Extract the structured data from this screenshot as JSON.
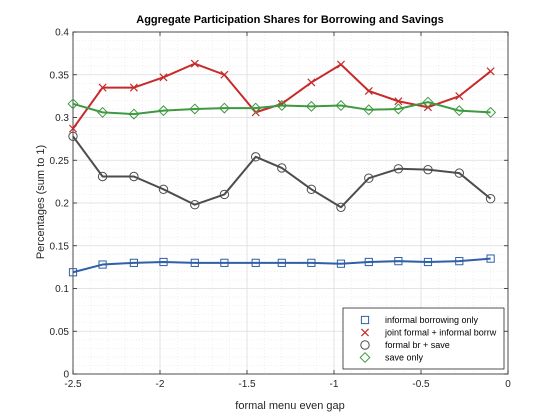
{
  "chart_data": {
    "type": "line",
    "title": "Aggregate Participation Shares for Borrowing and Savings",
    "xlabel": "formal menu even gap",
    "ylabel": "Percentages (sum to 1)",
    "xlim": [
      -2.5,
      0
    ],
    "ylim": [
      0,
      0.4
    ],
    "xticks": [
      -2.5,
      -2,
      -1.5,
      -1,
      -0.5,
      0
    ],
    "xtick_labels": [
      "-2.5",
      "-2",
      "-1.5",
      "-1",
      "-0.5",
      "0"
    ],
    "yticks": [
      0,
      0.05,
      0.1,
      0.15,
      0.2,
      0.25,
      0.3,
      0.35,
      0.4
    ],
    "ytick_labels": [
      "0",
      "0.05",
      "0.1",
      "0.15",
      "0.2",
      "0.25",
      "0.3",
      "0.35",
      "0.4"
    ],
    "grid": true,
    "minor_grid": true,
    "legend_position": "bottom-right",
    "x": [
      -2.5,
      -2.33,
      -2.15,
      -1.98,
      -1.8,
      -1.63,
      -1.45,
      -1.3,
      -1.13,
      -0.96,
      -0.8,
      -0.63,
      -0.46,
      -0.28,
      -0.1
    ],
    "series": [
      {
        "name": "informal borrowing only",
        "color": "#2f5fa7",
        "marker": "square",
        "values": [
          0.119,
          0.128,
          0.13,
          0.131,
          0.13,
          0.13,
          0.13,
          0.13,
          0.13,
          0.129,
          0.131,
          0.132,
          0.131,
          0.132,
          0.135
        ]
      },
      {
        "name": "joint formal + informal borrw",
        "color": "#c72a2a",
        "marker": "x",
        "values": [
          0.287,
          0.335,
          0.335,
          0.347,
          0.363,
          0.35,
          0.306,
          0.316,
          0.341,
          0.362,
          0.331,
          0.319,
          0.312,
          0.325,
          0.354
        ]
      },
      {
        "name": "formal br + save",
        "color": "#4d4d4d",
        "marker": "circle",
        "values": [
          0.278,
          0.231,
          0.231,
          0.216,
          0.198,
          0.21,
          0.254,
          0.241,
          0.216,
          0.195,
          0.229,
          0.24,
          0.239,
          0.235,
          0.205
        ]
      },
      {
        "name": "save only",
        "color": "#3d9a40",
        "marker": "diamond",
        "values": [
          0.316,
          0.306,
          0.304,
          0.308,
          0.31,
          0.311,
          0.311,
          0.314,
          0.313,
          0.314,
          0.309,
          0.31,
          0.318,
          0.308,
          0.306
        ]
      }
    ]
  }
}
